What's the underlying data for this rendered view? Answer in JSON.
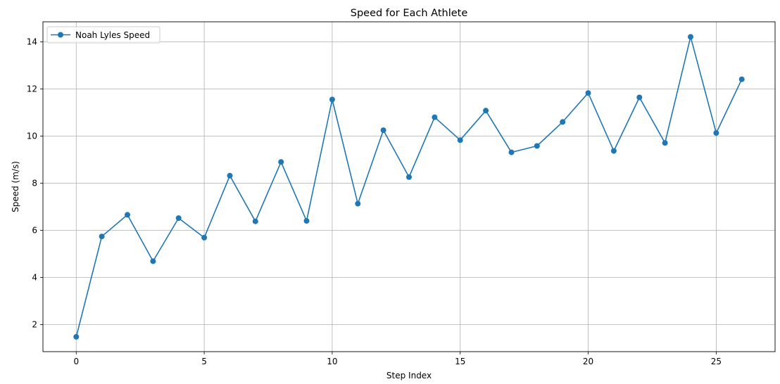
{
  "chart_data": {
    "type": "line",
    "title": "Speed for Each Athlete",
    "xlabel": "Step Index",
    "ylabel": "Speed (m/s)",
    "xlim": [
      -1.3,
      27.3
    ],
    "ylim": [
      0.85,
      14.85
    ],
    "xticks": [
      0,
      5,
      10,
      15,
      20,
      25
    ],
    "yticks": [
      2,
      4,
      6,
      8,
      10,
      12,
      14
    ],
    "grid": true,
    "legend_position": "upper-left",
    "colors": {
      "line": "#1f77b4",
      "grid": "#b0b0b0",
      "axes": "#000000"
    },
    "series": [
      {
        "name": "Noah Lyles Speed",
        "x": [
          0,
          1,
          2,
          3,
          4,
          5,
          6,
          7,
          8,
          9,
          10,
          11,
          12,
          13,
          14,
          15,
          16,
          17,
          18,
          19,
          20,
          21,
          22,
          23,
          24,
          25,
          26
        ],
        "values": [
          1.48,
          5.74,
          6.66,
          4.69,
          6.52,
          5.69,
          8.32,
          6.38,
          8.9,
          6.4,
          11.55,
          7.13,
          10.25,
          8.26,
          10.8,
          9.83,
          11.08,
          9.31,
          9.58,
          10.6,
          11.83,
          9.37,
          11.64,
          9.71,
          14.21,
          10.13,
          12.41
        ]
      }
    ]
  }
}
